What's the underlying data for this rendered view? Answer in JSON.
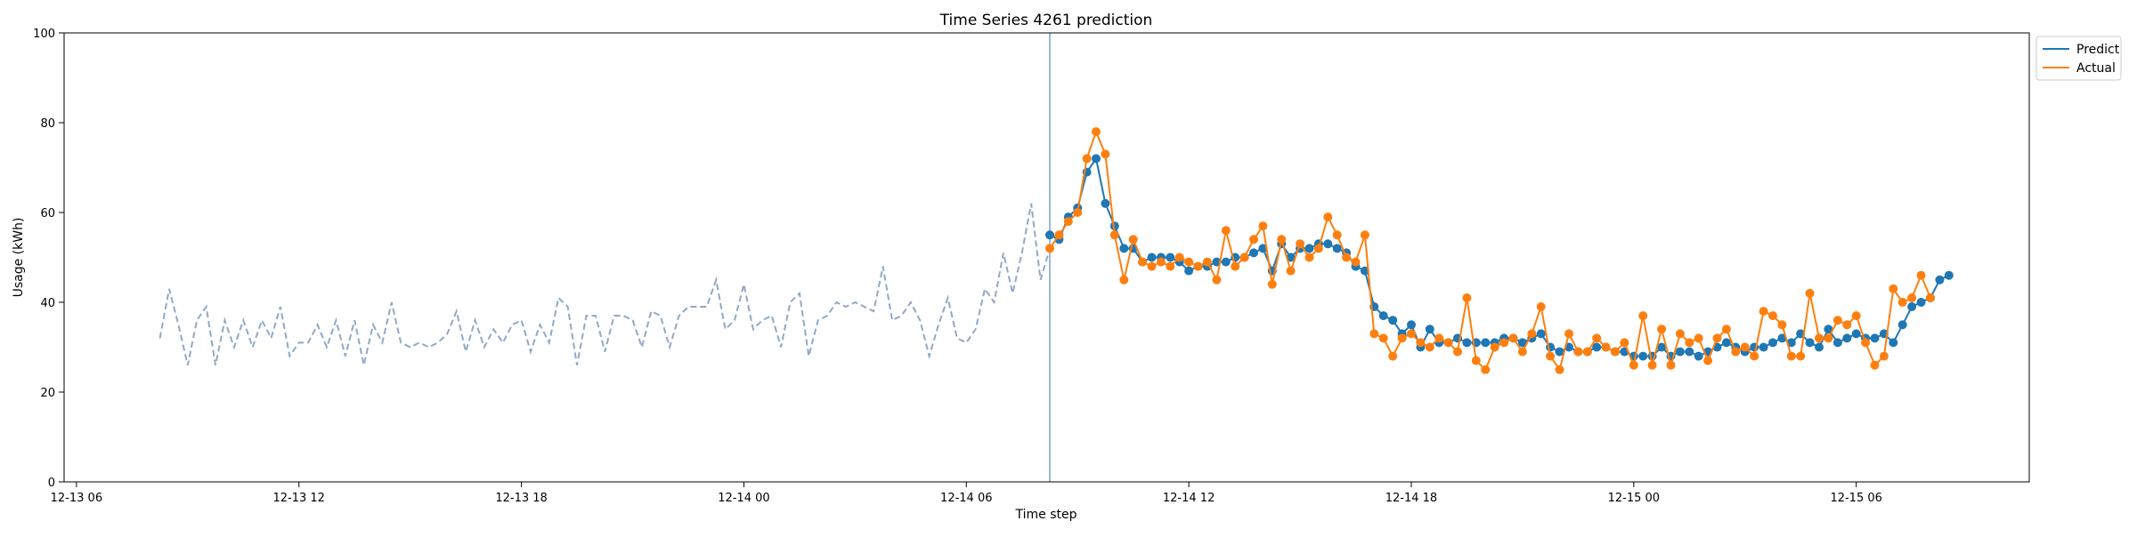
{
  "chart_data": {
    "type": "line",
    "title": "Time Series 4261 prediction",
    "xlabel": "Time step",
    "ylabel": "Usage (kWh)",
    "xlim": [
      "2012-12-13 05:40",
      "2012-12-15 10:40"
    ],
    "ylim": [
      0,
      100
    ],
    "grid": false,
    "legend_position": "top-right-outside",
    "x_ticks": [
      {
        "t": "2012-12-13 06:00",
        "label": "12-13 06"
      },
      {
        "t": "2012-12-13 12:00",
        "label": "12-13 12"
      },
      {
        "t": "2012-12-13 18:00",
        "label": "12-13 18"
      },
      {
        "t": "2012-12-14 00:00",
        "label": "12-14 00"
      },
      {
        "t": "2012-12-14 06:00",
        "label": "12-14 06"
      },
      {
        "t": "2012-12-14 12:00",
        "label": "12-14 12"
      },
      {
        "t": "2012-12-14 18:00",
        "label": "12-14 18"
      },
      {
        "t": "2012-12-15 00:00",
        "label": "12-15 00"
      },
      {
        "t": "2012-12-15 06:00",
        "label": "12-15 06"
      }
    ],
    "y_ticks": [
      0,
      20,
      40,
      60,
      80,
      100
    ],
    "forecast_start": "2012-12-14 08:15",
    "history": {
      "start": "2012-12-13 08:15",
      "step_minutes": 15,
      "color": "#8fa9c8",
      "values": [
        32,
        43,
        35,
        26,
        36,
        39,
        26,
        36,
        30,
        36,
        30,
        36,
        32,
        39,
        28,
        31,
        31,
        35,
        30,
        36,
        28,
        36,
        26,
        35,
        31,
        40,
        31,
        30,
        31,
        30,
        31,
        33,
        38,
        29,
        36,
        30,
        34,
        31,
        35,
        36,
        29,
        35,
        31,
        41,
        39,
        26,
        37,
        37,
        29,
        37,
        37,
        36,
        30,
        38,
        37,
        30,
        37,
        39,
        39,
        39,
        45,
        34,
        36,
        44,
        34,
        36,
        37,
        30,
        40,
        42,
        28,
        36,
        37,
        40,
        39,
        40,
        39,
        38,
        48,
        36,
        37,
        40,
        36,
        28,
        35,
        41,
        32,
        31,
        34,
        43,
        40,
        51,
        42,
        51,
        62,
        45,
        52
      ]
    },
    "series": [
      {
        "name": "Predict",
        "color": "#1f77b4",
        "start": "2012-12-14 08:15",
        "step_minutes": 15,
        "values": [
          55,
          54,
          59,
          61,
          69,
          72,
          62,
          57,
          52,
          52,
          49,
          50,
          50,
          50,
          49,
          47,
          48,
          48,
          49,
          49,
          50,
          50,
          51,
          52,
          47,
          53,
          50,
          52,
          52,
          53,
          53,
          52,
          51,
          48,
          47,
          39,
          37,
          36,
          33,
          35,
          30,
          34,
          31,
          31,
          32,
          31,
          31,
          31,
          31,
          32,
          32,
          31,
          32,
          33,
          30,
          29,
          30,
          29,
          29,
          30,
          30,
          29,
          29,
          28,
          28,
          28,
          30,
          28,
          29,
          29,
          28,
          29,
          30,
          31,
          30,
          29,
          30,
          30,
          31,
          32,
          31,
          33,
          31,
          30,
          34,
          31,
          32,
          33,
          32,
          32,
          33,
          31,
          35,
          39,
          40,
          41,
          45,
          46
        ]
      },
      {
        "name": "Actual",
        "color": "#ff7f0e",
        "start": "2012-12-14 08:15",
        "step_minutes": 15,
        "values": [
          52,
          55,
          58,
          60,
          72,
          78,
          73,
          55,
          45,
          54,
          49,
          48,
          49,
          48,
          50,
          49,
          48,
          49,
          45,
          56,
          48,
          50,
          54,
          57,
          44,
          54,
          47,
          53,
          50,
          52,
          59,
          55,
          50,
          49,
          55,
          33,
          32,
          28,
          32,
          33,
          31,
          30,
          32,
          31,
          29,
          41,
          27,
          25,
          30,
          31,
          32,
          29,
          33,
          39,
          28,
          25,
          33,
          29,
          29,
          32,
          30,
          29,
          31,
          26,
          37,
          26,
          34,
          26,
          33,
          31,
          32,
          27,
          32,
          34,
          29,
          30,
          28,
          38,
          37,
          35,
          28,
          28,
          42,
          32,
          32,
          36,
          35,
          37,
          31,
          26,
          28,
          43,
          40,
          41,
          46,
          41
        ]
      }
    ]
  }
}
